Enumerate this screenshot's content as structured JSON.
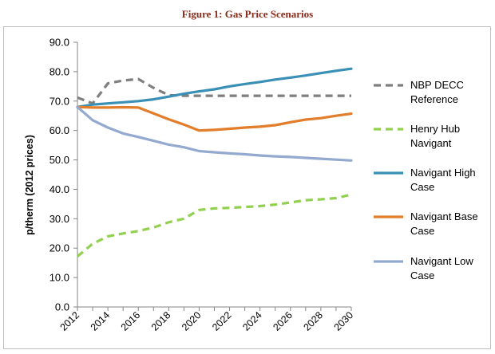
{
  "figure_title": "Figure 1: Gas Price Scenarios",
  "chart_data": {
    "type": "line",
    "title": "Figure 1: Gas Price Scenarios",
    "xlabel": "",
    "ylabel": "p/therm (2012 prices)",
    "ylim": [
      0,
      90
    ],
    "xlim": [
      2012,
      2030
    ],
    "x_ticks": [
      "2012",
      "2014",
      "2016",
      "2018",
      "2020",
      "2022",
      "2024",
      "2026",
      "2028",
      "2030"
    ],
    "y_ticks": [
      "0.0",
      "10.0",
      "20.0",
      "30.0",
      "40.0",
      "50.0",
      "60.0",
      "70.0",
      "80.0",
      "90.0"
    ],
    "grid": "none",
    "legend_position": "right",
    "x": [
      2012,
      2013,
      2014,
      2015,
      2016,
      2017,
      2018,
      2019,
      2020,
      2021,
      2022,
      2023,
      2024,
      2025,
      2026,
      2027,
      2028,
      2029,
      2030
    ],
    "series": [
      {
        "name": "NBP DECC Reference",
        "color": "#7f7f7f",
        "dash": "dashed",
        "values": [
          71.2,
          69.2,
          76.0,
          77.0,
          77.5,
          74.5,
          72.0,
          71.8,
          71.8,
          71.8,
          71.8,
          71.8,
          71.8,
          71.8,
          71.8,
          71.8,
          71.8,
          71.8,
          71.8
        ]
      },
      {
        "name": "Henry Hub Navigant",
        "color": "#92d050",
        "dash": "dashed",
        "values": [
          17.2,
          21.5,
          24.0,
          25.0,
          25.8,
          27.0,
          28.8,
          30.0,
          33.0,
          33.5,
          33.7,
          34.0,
          34.3,
          34.8,
          35.5,
          36.3,
          36.6,
          37.0,
          38.2
        ]
      },
      {
        "name": "Navigant High Case",
        "color": "#3a8fb7",
        "dash": "solid",
        "values": [
          68.0,
          68.8,
          69.2,
          69.6,
          70.0,
          70.6,
          71.5,
          72.5,
          73.3,
          74.0,
          75.0,
          75.8,
          76.5,
          77.3,
          78.0,
          78.7,
          79.5,
          80.3,
          81.0
        ]
      },
      {
        "name": "Navigant Base Case",
        "color": "#e27d2b",
        "dash": "solid",
        "values": [
          68.0,
          67.8,
          67.8,
          67.9,
          67.8,
          65.8,
          63.8,
          62.0,
          60.0,
          60.2,
          60.6,
          61.0,
          61.3,
          61.8,
          62.8,
          63.7,
          64.2,
          65.0,
          65.7
        ]
      },
      {
        "name": "Navigant Low Case",
        "color": "#94a9cf",
        "dash": "solid",
        "values": [
          68.0,
          63.5,
          61.0,
          59.0,
          57.8,
          56.5,
          55.2,
          54.3,
          53.0,
          52.6,
          52.2,
          51.9,
          51.5,
          51.2,
          51.0,
          50.7,
          50.4,
          50.1,
          49.8
        ]
      }
    ],
    "legend": [
      {
        "line1": "NBP DECC",
        "line2": "Reference"
      },
      {
        "line1": "Henry Hub",
        "line2": "Navigant"
      },
      {
        "line1": "Navigant High",
        "line2": "Case"
      },
      {
        "line1": "Navigant Base",
        "line2": "Case"
      },
      {
        "line1": "Navigant Low",
        "line2": "Case"
      }
    ]
  }
}
